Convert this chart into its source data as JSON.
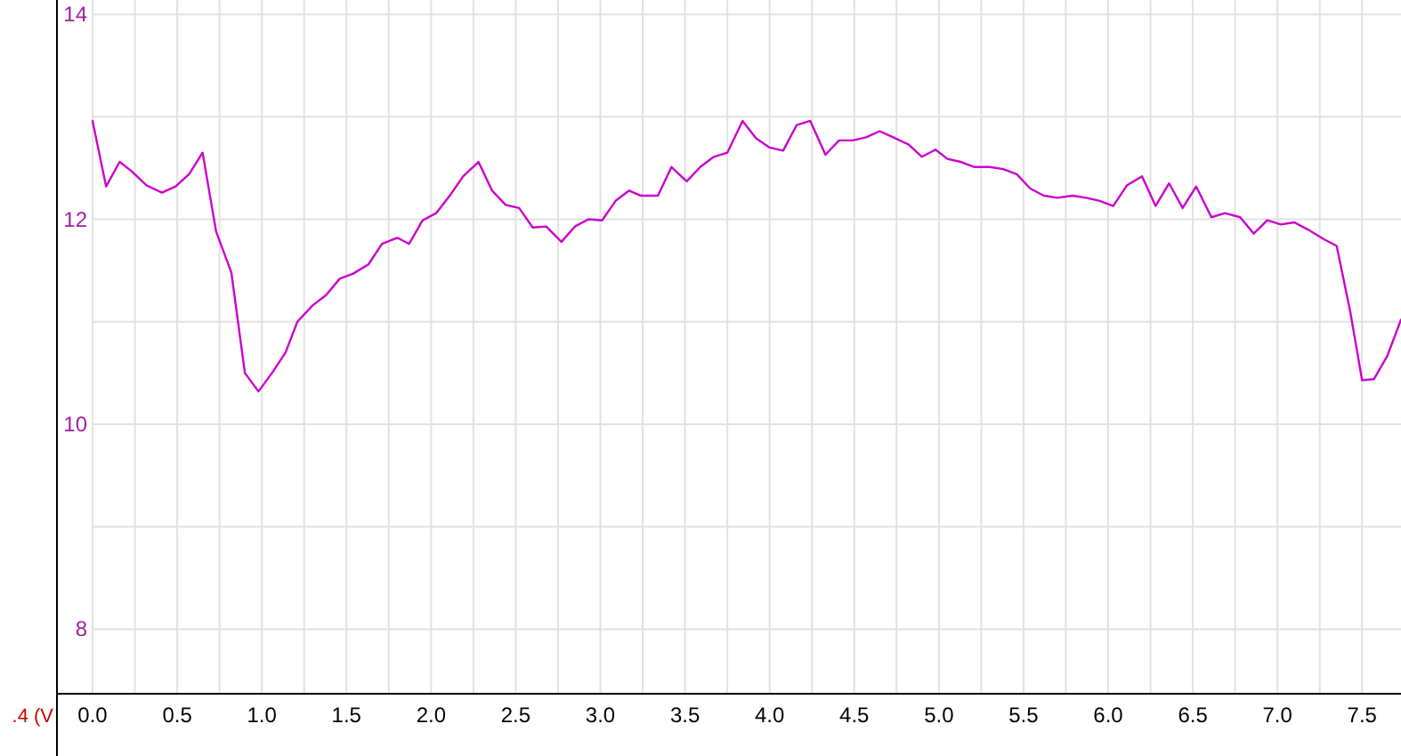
{
  "chart_data": {
    "type": "line",
    "x": [
      0,
      0.08,
      0.16,
      0.23,
      0.32,
      0.41,
      0.49,
      0.57,
      0.65,
      0.73,
      0.82,
      0.9,
      0.98,
      1.06,
      1.14,
      1.21,
      1.3,
      1.38,
      1.46,
      1.54,
      1.63,
      1.71,
      1.8,
      1.87,
      1.95,
      2.03,
      2.11,
      2.19,
      2.28,
      2.36,
      2.44,
      2.52,
      2.6,
      2.68,
      2.77,
      2.85,
      2.93,
      3.01,
      3.09,
      3.17,
      3.24,
      3.34,
      3.42,
      3.51,
      3.59,
      3.67,
      3.75,
      3.84,
      3.92,
      4.0,
      4.08,
      4.16,
      4.24,
      4.33,
      4.41,
      4.49,
      4.57,
      4.65,
      4.73,
      4.82,
      4.9,
      4.98,
      5.05,
      5.13,
      5.21,
      5.3,
      5.38,
      5.46,
      5.54,
      5.62,
      5.7,
      5.79,
      5.87,
      5.95,
      6.03,
      6.11,
      6.2,
      6.28,
      6.36,
      6.44,
      6.52,
      6.61,
      6.69,
      6.78,
      6.86,
      6.94,
      7.02,
      7.1,
      7.18,
      7.27,
      7.35,
      7.43,
      7.5,
      7.57,
      7.65,
      7.73
    ],
    "series": [
      {
        "color": "#cc00cc",
        "values": [
          12.96,
          12.32,
          12.56,
          12.47,
          12.33,
          12.26,
          12.32,
          12.44,
          12.65,
          11.88,
          11.48,
          10.5,
          10.32,
          10.5,
          10.7,
          11.0,
          11.16,
          11.26,
          11.42,
          11.47,
          11.56,
          11.76,
          11.82,
          11.76,
          11.99,
          12.06,
          12.23,
          12.42,
          12.56,
          12.28,
          12.14,
          12.11,
          11.92,
          11.93,
          11.78,
          11.93,
          12.0,
          11.99,
          12.18,
          12.28,
          12.23,
          12.23,
          12.51,
          12.37,
          12.51,
          12.61,
          12.65,
          12.96,
          12.79,
          12.7,
          12.67,
          12.92,
          12.96,
          12.63,
          12.77,
          12.77,
          12.8,
          12.86,
          12.8,
          12.73,
          12.61,
          12.68,
          12.59,
          12.56,
          12.51,
          12.51,
          12.49,
          12.44,
          12.3,
          12.23,
          12.21,
          12.23,
          12.21,
          12.18,
          12.13,
          12.33,
          12.42,
          12.13,
          12.35,
          12.11,
          12.32,
          12.02,
          12.06,
          12.02,
          11.86,
          11.99,
          11.95,
          11.97,
          11.9,
          11.81,
          11.74,
          11.1,
          10.43,
          10.44,
          10.67,
          11.02
        ]
      }
    ],
    "xlim": [
      0,
      7.73
    ],
    "xticks": [
      {
        "value": 0,
        "label": "0.0"
      },
      {
        "value": 0.25,
        "label": null
      },
      {
        "value": 0.5,
        "label": "0.5"
      },
      {
        "value": 0.75,
        "label": null
      },
      {
        "value": 1,
        "label": "1.0"
      },
      {
        "value": 1.25,
        "label": null
      },
      {
        "value": 1.5,
        "label": "1.5"
      },
      {
        "value": 1.75,
        "label": null
      },
      {
        "value": 2,
        "label": "2.0"
      },
      {
        "value": 2.25,
        "label": null
      },
      {
        "value": 2.5,
        "label": "2.5"
      },
      {
        "value": 2.75,
        "label": null
      },
      {
        "value": 3,
        "label": "3.0"
      },
      {
        "value": 3.25,
        "label": null
      },
      {
        "value": 3.5,
        "label": "3.5"
      },
      {
        "value": 3.75,
        "label": null
      },
      {
        "value": 4,
        "label": "4.0"
      },
      {
        "value": 4.25,
        "label": null
      },
      {
        "value": 4.5,
        "label": "4.5"
      },
      {
        "value": 4.75,
        "label": null
      },
      {
        "value": 5,
        "label": "5.0"
      },
      {
        "value": 5.25,
        "label": null
      },
      {
        "value": 5.5,
        "label": "5.5"
      },
      {
        "value": 5.75,
        "label": null
      },
      {
        "value": 6,
        "label": "6.0"
      },
      {
        "value": 6.25,
        "label": null
      },
      {
        "value": 6.5,
        "label": "6.5"
      },
      {
        "value": 6.75,
        "label": null
      },
      {
        "value": 7,
        "label": "7.0"
      },
      {
        "value": 7.25,
        "label": null
      },
      {
        "value": 7.5,
        "label": "7.5"
      }
    ],
    "ylim": [
      7.37,
      14.14
    ],
    "yticks": [
      8,
      {
        "value": 9,
        "label": null
      },
      10,
      {
        "value": 11,
        "label": null
      },
      12,
      {
        "value": 13,
        "label": null
      },
      14
    ],
    "grid": true,
    "annotations": [
      ".4 (V"
    ]
  }
}
